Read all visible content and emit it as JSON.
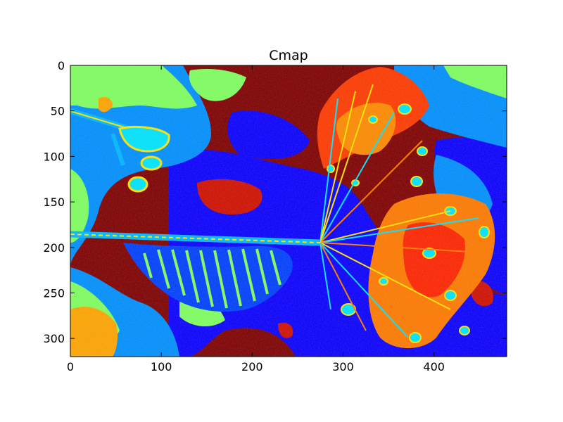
{
  "chart_data": {
    "type": "heatmap",
    "title": "Cmap",
    "xlabel": "",
    "ylabel": "",
    "xlim": [
      0,
      480
    ],
    "ylim": [
      320,
      0
    ],
    "x_ticks": [
      0,
      100,
      200,
      300,
      400
    ],
    "y_ticks": [
      0,
      50,
      100,
      150,
      200,
      250,
      300
    ],
    "grid": false,
    "colormap": "jet",
    "colormap_colors": [
      "#00007f",
      "#0000ff",
      "#007fff",
      "#00ffff",
      "#7fff7f",
      "#ffff00",
      "#ff7f00",
      "#ff0000",
      "#7f0000"
    ],
    "image_description_regions": [
      {
        "label": "background-green",
        "color": "#7fff5a"
      },
      {
        "label": "background-blue",
        "color": "#008cff"
      },
      {
        "label": "background-darkred",
        "color": "#800000"
      },
      {
        "label": "background-blue2",
        "color": "#0000ff"
      },
      {
        "label": "orange",
        "color": "#ffa500"
      },
      {
        "label": "red",
        "color": "#ff2000"
      },
      {
        "label": "cyan",
        "color": "#00e0ff"
      },
      {
        "label": "yellow",
        "color": "#ffff00"
      }
    ]
  }
}
